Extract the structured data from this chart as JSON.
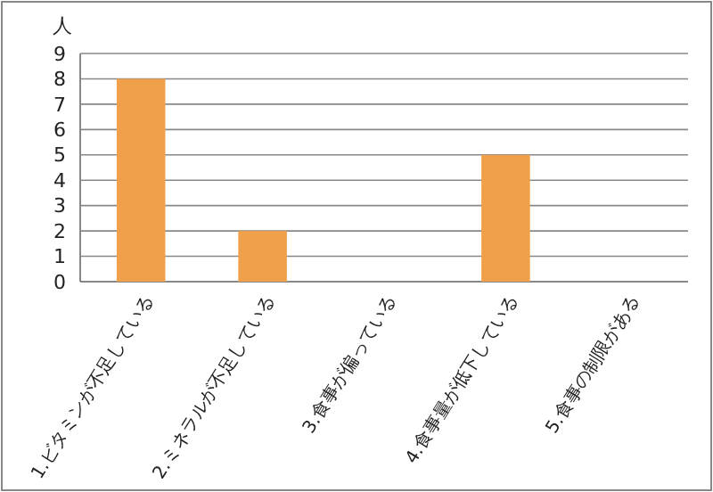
{
  "chart_data": {
    "type": "bar",
    "ylabel": "人",
    "categories": [
      "1.ビタミンが不足している",
      "2.ミネラルが不足している",
      "3.食事が偏っている",
      "4.食事量が低下している",
      "5.食事の制限がある"
    ],
    "values": [
      8,
      2,
      0,
      5,
      0
    ],
    "color": "#f0a04a",
    "ylim": [
      0,
      9
    ],
    "yticks": [
      0,
      1,
      2,
      3,
      4,
      5,
      6,
      7,
      8,
      9
    ],
    "grid": "y"
  }
}
